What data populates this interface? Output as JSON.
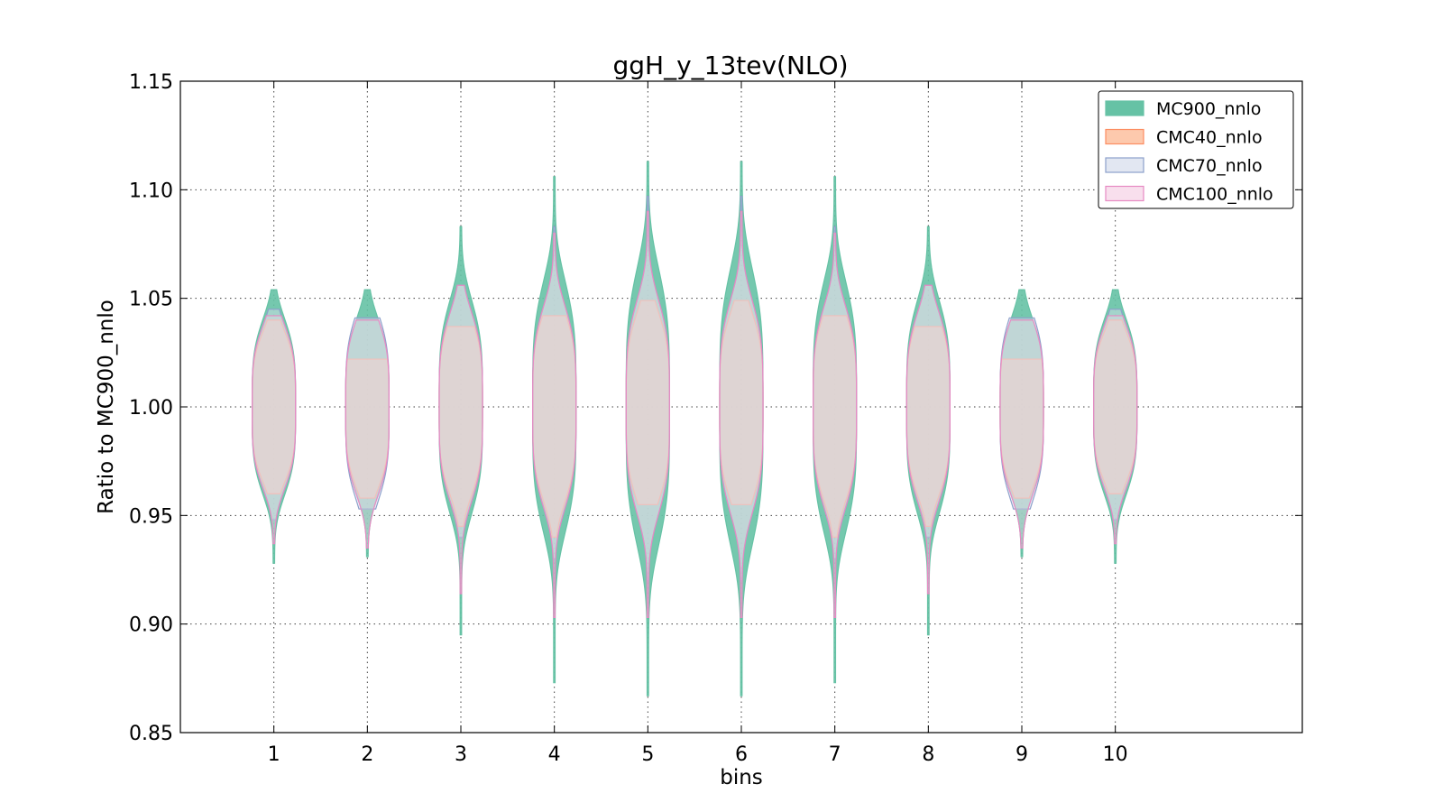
{
  "chart_data": {
    "type": "violin",
    "title": "ggH_y_13tev(NLO)",
    "xlabel": "bins",
    "ylabel": "Ratio to MC900_nnlo",
    "ylim": [
      0.85,
      1.15
    ],
    "yticks": [
      0.85,
      0.9,
      0.95,
      1.0,
      1.05,
      1.1,
      1.15
    ],
    "ytick_labels": [
      "0.85",
      "0.90",
      "0.95",
      "1.00",
      "1.05",
      "1.10",
      "1.15"
    ],
    "categories": [
      "1",
      "2",
      "3",
      "4",
      "5",
      "6",
      "7",
      "8",
      "9",
      "10"
    ],
    "xlim": [
      0,
      12
    ],
    "grid": true,
    "legend_position": "top-right",
    "series": [
      {
        "name": "MC900_nnlo",
        "color": "#66c2a5",
        "fill": "#66c2a5",
        "min": [
          0.928,
          0.931,
          0.895,
          0.873,
          0.867,
          0.867,
          0.873,
          0.895,
          0.931,
          0.928
        ],
        "max": [
          1.054,
          1.054,
          1.083,
          1.106,
          1.113,
          1.113,
          1.106,
          1.083,
          1.054,
          1.054
        ],
        "core": [
          0.028,
          0.028,
          0.034,
          0.04,
          0.044,
          0.044,
          0.04,
          0.034,
          0.028,
          0.028
        ]
      },
      {
        "name": "CMC40_nnlo",
        "color": "#fc8d62",
        "fill": "#fdbf9f",
        "min": [
          0.96,
          0.958,
          0.945,
          0.94,
          0.955,
          0.955,
          0.94,
          0.945,
          0.958,
          0.96
        ],
        "max": [
          1.04,
          1.022,
          1.037,
          1.042,
          1.049,
          1.049,
          1.042,
          1.037,
          1.022,
          1.04
        ],
        "core": [
          0.024,
          0.026,
          0.028,
          0.03,
          0.03,
          0.03,
          0.03,
          0.028,
          0.026,
          0.024
        ]
      },
      {
        "name": "CMC70_nnlo",
        "color": "#8da0cb",
        "fill": "#dde3f0",
        "min": [
          0.948,
          0.953,
          0.94,
          0.93,
          0.92,
          0.92,
          0.93,
          0.94,
          0.953,
          0.948
        ],
        "max": [
          1.045,
          1.041,
          1.056,
          1.083,
          1.097,
          1.097,
          1.083,
          1.056,
          1.041,
          1.045
        ],
        "core": [
          0.026,
          0.03,
          0.03,
          0.032,
          0.034,
          0.034,
          0.032,
          0.03,
          0.03,
          0.026
        ]
      },
      {
        "name": "CMC100_nnlo",
        "color": "#e78ac3",
        "fill": "#f7d9ea",
        "min": [
          0.937,
          0.935,
          0.914,
          0.903,
          0.903,
          0.903,
          0.903,
          0.914,
          0.935,
          0.937
        ],
        "max": [
          1.042,
          1.04,
          1.056,
          1.08,
          1.09,
          1.09,
          1.08,
          1.056,
          1.04,
          1.042
        ],
        "core": [
          0.026,
          0.028,
          0.03,
          0.032,
          0.034,
          0.034,
          0.032,
          0.03,
          0.028,
          0.026
        ]
      }
    ]
  }
}
